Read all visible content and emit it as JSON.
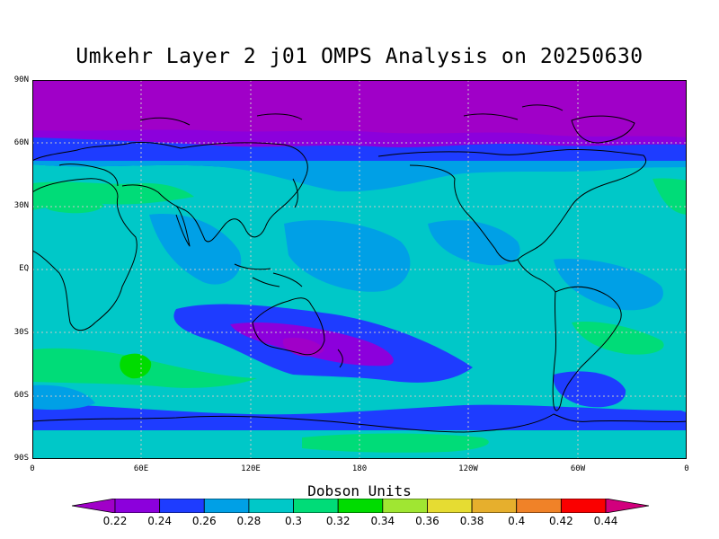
{
  "title": "Umkehr Layer 2 j01 OMPS Analysis on 20250630",
  "y_ticks": [
    "90N",
    "60N",
    "30N",
    "EQ",
    "30S",
    "60S",
    "90S"
  ],
  "x_ticks": [
    "0",
    "60E",
    "120E",
    "180",
    "120W",
    "60W",
    "0"
  ],
  "colorbar": {
    "title": "Dobson Units",
    "levels": [
      "0.22",
      "0.24",
      "0.26",
      "0.28",
      "0.3",
      "0.32",
      "0.34",
      "0.36",
      "0.38",
      "0.4",
      "0.42",
      "0.44"
    ],
    "colors": [
      "#a000c8",
      "#8c00dc",
      "#1e3cff",
      "#00a0e6",
      "#00c8c8",
      "#00dc78",
      "#00dc00",
      "#a0e632",
      "#e6dc32",
      "#e6af2d",
      "#f08228",
      "#fa0000",
      "#d2007d"
    ]
  },
  "map_colors": {
    "purple": "#a000c8",
    "violet": "#8c00dc",
    "blue": "#1e3cff",
    "lightblue": "#00a0e6",
    "teal": "#00c8c8",
    "seagreen": "#00dc78",
    "green": "#00dc00"
  }
}
